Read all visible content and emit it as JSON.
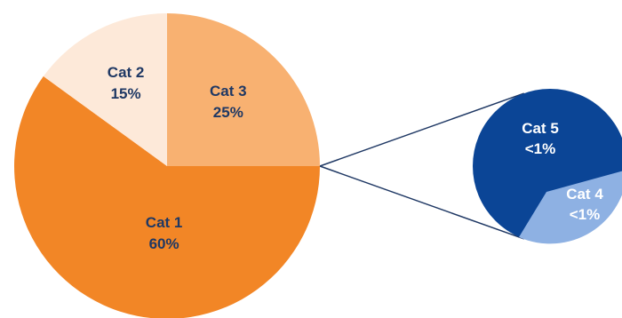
{
  "chart_data": {
    "type": "pie",
    "subtype": "pie-of-pie",
    "title": "",
    "main_pie": {
      "slices": [
        {
          "category": "Cat 1",
          "label": "60%",
          "value": 60,
          "color": "#f28626"
        },
        {
          "category": "Cat 2",
          "label": "15%",
          "value": 15,
          "color": "#fde9d9"
        },
        {
          "category": "Cat 3",
          "label": "25%",
          "value": 25,
          "color": "#f8b171"
        }
      ]
    },
    "secondary_pie": {
      "slices": [
        {
          "category": "Cat 5",
          "label": "<1%",
          "value": 0.7,
          "color": "#0b4596"
        },
        {
          "category": "Cat 4",
          "label": "<1%",
          "value": 0.3,
          "color": "#8eb1e3"
        }
      ]
    },
    "connector_color": "#1f3864",
    "legend": "none"
  }
}
